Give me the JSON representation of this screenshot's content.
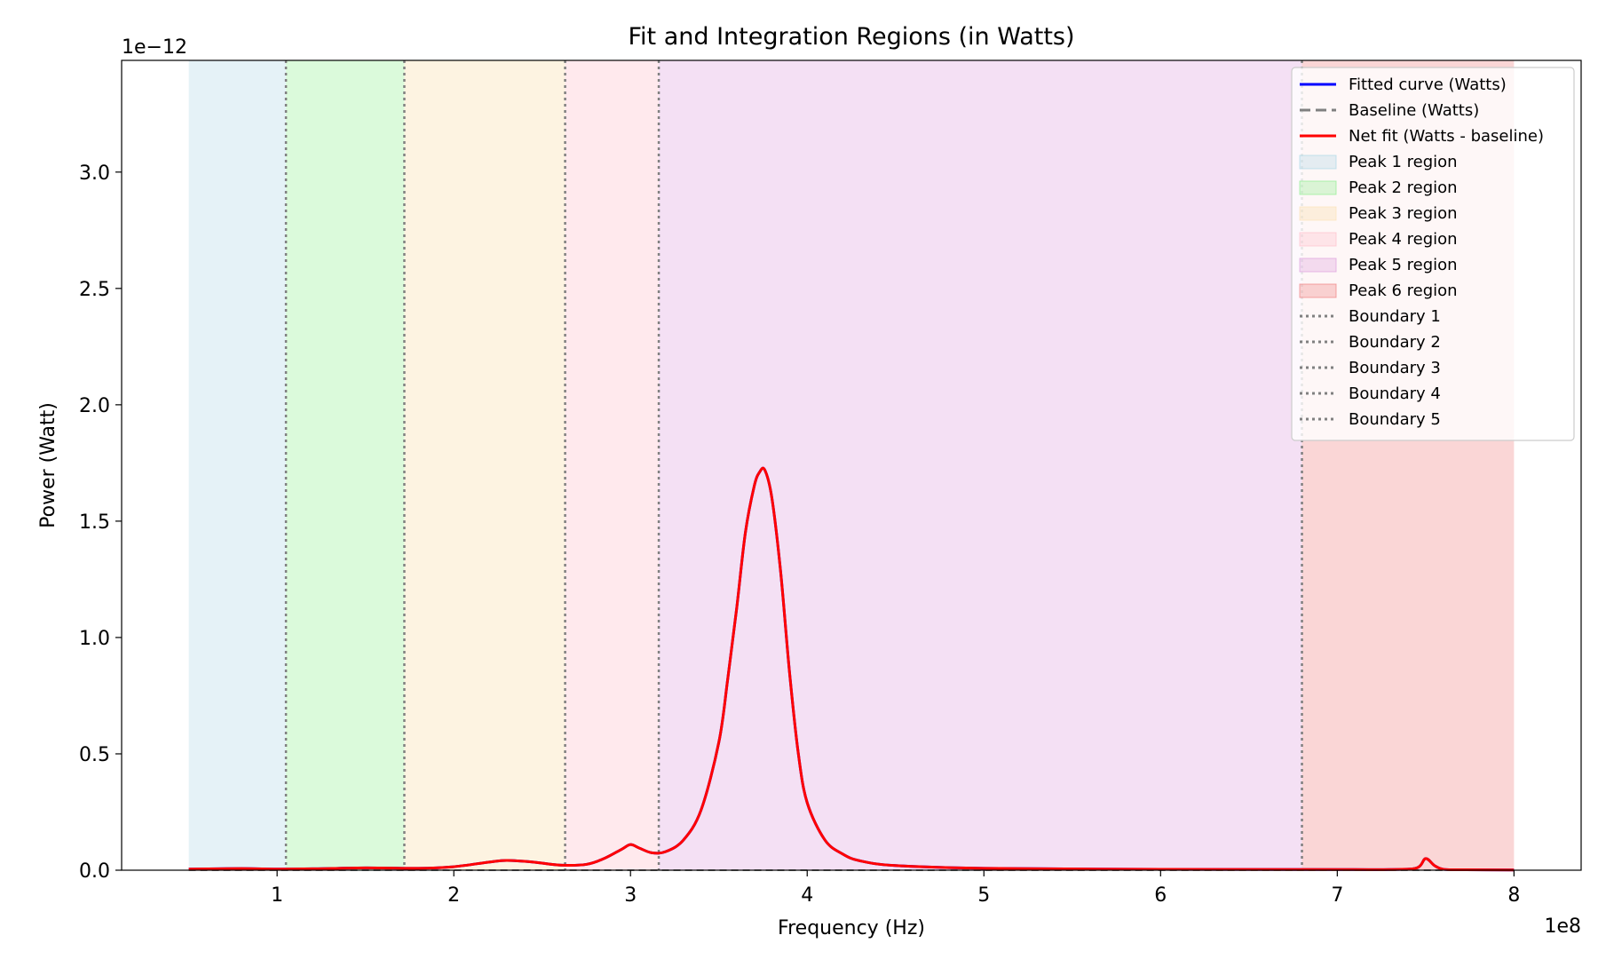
{
  "chart_data": {
    "type": "line",
    "title": "Fit and Integration Regions (in Watts)",
    "xlabel": "Frequency (Hz)",
    "ylabel": "Power (Watt)",
    "x_scale_label": "1e8",
    "y_scale_label": "1e−12",
    "xlim": [
      0.12,
      8.38
    ],
    "ylim": [
      0,
      3.48
    ],
    "x_ticks": [
      1,
      2,
      3,
      4,
      5,
      6,
      7,
      8
    ],
    "x_tick_labels": [
      "1",
      "2",
      "3",
      "4",
      "5",
      "6",
      "7",
      "8"
    ],
    "y_ticks": [
      0,
      0.5,
      1.0,
      1.5,
      2.0,
      2.5,
      3.0
    ],
    "y_tick_labels": [
      "0.0",
      "0.5",
      "1.0",
      "1.5",
      "2.0",
      "2.5",
      "3.0"
    ],
    "grid": false,
    "legend_position": "top-right",
    "regions": [
      {
        "name": "Peak 1 region",
        "x": [
          0.5,
          1.05
        ],
        "color": "#add8e6",
        "opacity": 0.32
      },
      {
        "name": "Peak 2 region",
        "x": [
          1.05,
          1.72
        ],
        "color": "#90ee90",
        "opacity": 0.32
      },
      {
        "name": "Peak 3 region",
        "x": [
          1.72,
          2.63
        ],
        "color": "#fbe3b8",
        "opacity": 0.42
      },
      {
        "name": "Peak 4 region",
        "x": [
          2.63,
          3.16
        ],
        "color": "#ffc0cb",
        "opacity": 0.35
      },
      {
        "name": "Peak 5 region",
        "x": [
          3.16,
          6.8
        ],
        "color": "#dda0dd",
        "opacity": 0.32
      },
      {
        "name": "Peak 6 region",
        "x": [
          6.8,
          8.0
        ],
        "color": "#f08080",
        "opacity": 0.32
      }
    ],
    "boundaries": [
      {
        "name": "Boundary 1",
        "x": 1.05
      },
      {
        "name": "Boundary 2",
        "x": 1.72
      },
      {
        "name": "Boundary 3",
        "x": 2.63
      },
      {
        "name": "Boundary 4",
        "x": 3.16
      },
      {
        "name": "Boundary 5",
        "x": 6.8
      }
    ],
    "series": [
      {
        "name": "Fitted curve (Watts)",
        "color": "#0000ff",
        "style": "solid",
        "x": [
          0.5,
          0.8,
          1.0,
          1.2,
          1.5,
          1.8,
          2.0,
          2.2,
          2.3,
          2.45,
          2.6,
          2.75,
          2.85,
          2.95,
          3.0,
          3.05,
          3.12,
          3.2,
          3.3,
          3.4,
          3.5,
          3.55,
          3.6,
          3.65,
          3.7,
          3.73,
          3.76,
          3.8,
          3.85,
          3.9,
          3.95,
          4.0,
          4.1,
          4.2,
          4.3,
          4.5,
          5.0,
          6.0,
          7.0,
          7.3,
          7.45,
          7.5,
          7.55,
          7.6,
          7.7,
          8.0
        ],
        "y": [
          0.005,
          0.007,
          0.005,
          0.006,
          0.01,
          0.008,
          0.015,
          0.035,
          0.042,
          0.035,
          0.022,
          0.025,
          0.05,
          0.09,
          0.11,
          0.095,
          0.075,
          0.08,
          0.13,
          0.26,
          0.55,
          0.82,
          1.12,
          1.45,
          1.65,
          1.71,
          1.72,
          1.6,
          1.28,
          0.85,
          0.5,
          0.29,
          0.13,
          0.07,
          0.04,
          0.02,
          0.008,
          0.004,
          0.003,
          0.003,
          0.01,
          0.05,
          0.02,
          0.004,
          0.002,
          0.001
        ]
      },
      {
        "name": "Baseline (Watts)",
        "color": "#808080",
        "style": "dashed",
        "x": [
          0.5,
          8.0
        ],
        "y": [
          0.0,
          0.0
        ]
      },
      {
        "name": "Net fit (Watts - baseline)",
        "color": "#ff0000",
        "style": "solid",
        "x": [
          0.5,
          0.8,
          1.0,
          1.2,
          1.5,
          1.8,
          2.0,
          2.2,
          2.3,
          2.45,
          2.6,
          2.75,
          2.85,
          2.95,
          3.0,
          3.05,
          3.12,
          3.2,
          3.3,
          3.4,
          3.5,
          3.55,
          3.6,
          3.65,
          3.7,
          3.73,
          3.76,
          3.8,
          3.85,
          3.9,
          3.95,
          4.0,
          4.1,
          4.2,
          4.3,
          4.5,
          5.0,
          6.0,
          7.0,
          7.3,
          7.45,
          7.5,
          7.55,
          7.6,
          7.7,
          8.0
        ],
        "y": [
          0.005,
          0.007,
          0.005,
          0.006,
          0.01,
          0.008,
          0.015,
          0.035,
          0.042,
          0.035,
          0.022,
          0.025,
          0.05,
          0.09,
          0.11,
          0.095,
          0.075,
          0.08,
          0.13,
          0.26,
          0.55,
          0.82,
          1.12,
          1.45,
          1.65,
          1.71,
          1.72,
          1.6,
          1.28,
          0.85,
          0.5,
          0.29,
          0.13,
          0.07,
          0.04,
          0.02,
          0.008,
          0.004,
          0.003,
          0.003,
          0.01,
          0.05,
          0.02,
          0.004,
          0.002,
          0.001
        ]
      }
    ],
    "legend": [
      {
        "label": "Fitted curve (Watts)",
        "kind": "line",
        "color": "#0000ff",
        "style": "solid"
      },
      {
        "label": "Baseline (Watts)",
        "kind": "line",
        "color": "#808080",
        "style": "dashed"
      },
      {
        "label": "Net fit (Watts - baseline)",
        "kind": "line",
        "color": "#ff0000",
        "style": "solid"
      },
      {
        "label": "Peak 1 region",
        "kind": "patch",
        "color": "#add8e6",
        "opacity": 0.32
      },
      {
        "label": "Peak 2 region",
        "kind": "patch",
        "color": "#90ee90",
        "opacity": 0.32
      },
      {
        "label": "Peak 3 region",
        "kind": "patch",
        "color": "#fbe3b8",
        "opacity": 0.42
      },
      {
        "label": "Peak 4 region",
        "kind": "patch",
        "color": "#ffc0cb",
        "opacity": 0.35
      },
      {
        "label": "Peak 5 region",
        "kind": "patch",
        "color": "#dda0dd",
        "opacity": 0.32
      },
      {
        "label": "Peak 6 region",
        "kind": "patch",
        "color": "#f08080",
        "opacity": 0.32
      },
      {
        "label": "Boundary 1",
        "kind": "line",
        "color": "#808080",
        "style": "dotted"
      },
      {
        "label": "Boundary 2",
        "kind": "line",
        "color": "#808080",
        "style": "dotted"
      },
      {
        "label": "Boundary 3",
        "kind": "line",
        "color": "#808080",
        "style": "dotted"
      },
      {
        "label": "Boundary 4",
        "kind": "line",
        "color": "#808080",
        "style": "dotted"
      },
      {
        "label": "Boundary 5",
        "kind": "line",
        "color": "#808080",
        "style": "dotted"
      }
    ]
  }
}
